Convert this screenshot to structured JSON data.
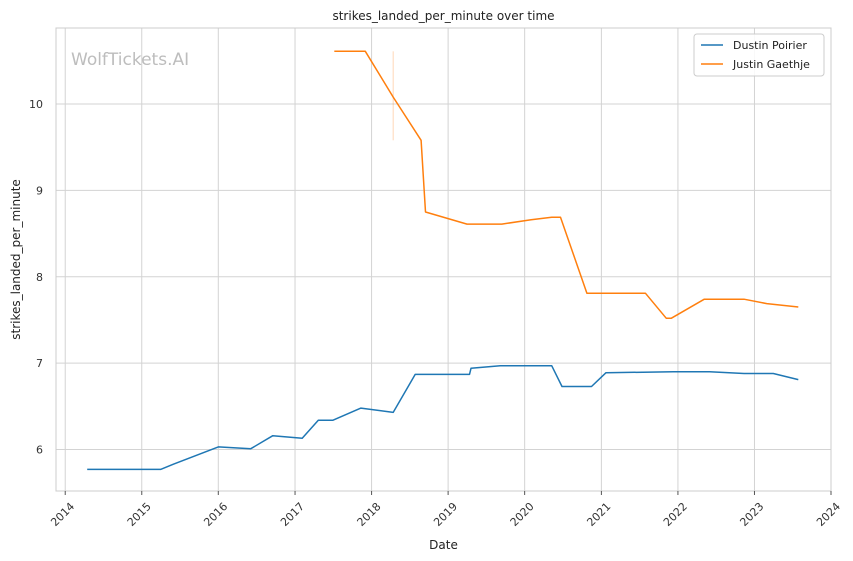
{
  "chart_data": {
    "type": "line",
    "title": "strikes_landed_per_minute over time",
    "xlabel": "Date",
    "ylabel": "strikes_landed_per_minute",
    "watermark": "WolfTickets.AI",
    "x_ticks": [
      "2014",
      "2015",
      "2016",
      "2017",
      "2018",
      "2019",
      "2020",
      "2021",
      "2022",
      "2023",
      "2024"
    ],
    "y_ticks": [
      "6",
      "7",
      "8",
      "9",
      "10"
    ],
    "xlim": [
      "2013-11-18",
      "2024-01-01"
    ],
    "ylim": [
      5.52,
      10.88
    ],
    "grid": true,
    "legend_position": "top-right",
    "series": [
      {
        "name": "Dustin Poirier",
        "color": "#1f77b4",
        "points": [
          [
            "2014-04-16",
            5.77
          ],
          [
            "2015-04-01",
            5.77
          ],
          [
            "2015-06-01",
            5.83
          ],
          [
            "2016-01-01",
            6.03
          ],
          [
            "2016-06-04",
            6.01
          ],
          [
            "2016-09-17",
            6.16
          ],
          [
            "2017-02-04",
            6.13
          ],
          [
            "2017-04-22",
            6.34
          ],
          [
            "2017-07-01",
            6.34
          ],
          [
            "2017-11-11",
            6.48
          ],
          [
            "2018-04-14",
            6.43
          ],
          [
            "2018-07-28",
            6.87
          ],
          [
            "2019-04-13",
            6.87
          ],
          [
            "2019-04-20",
            6.94
          ],
          [
            "2019-09-07",
            6.97
          ],
          [
            "2020-05-09",
            6.97
          ],
          [
            "2020-06-27",
            6.73
          ],
          [
            "2020-11-15",
            6.73
          ],
          [
            "2021-01-23",
            6.89
          ],
          [
            "2021-12-11",
            6.9
          ],
          [
            "2022-06-01",
            6.9
          ],
          [
            "2022-11-12",
            6.88
          ],
          [
            "2023-04-01",
            6.88
          ],
          [
            "2023-07-29",
            6.81
          ]
        ]
      },
      {
        "name": "Justin Gaethje",
        "color": "#ff7f0e",
        "points": [
          [
            "2017-07-07",
            10.61
          ],
          [
            "2017-12-02",
            10.61
          ],
          [
            "2018-04-14",
            10.08
          ],
          [
            "2018-08-25",
            9.58
          ],
          [
            "2018-09-15",
            8.75
          ],
          [
            "2019-04-01",
            8.61
          ],
          [
            "2019-09-14",
            8.61
          ],
          [
            "2020-02-01",
            8.66
          ],
          [
            "2020-05-09",
            8.69
          ],
          [
            "2020-06-20",
            8.69
          ],
          [
            "2020-10-24",
            7.81
          ],
          [
            "2021-07-30",
            7.81
          ],
          [
            "2021-11-06",
            7.52
          ],
          [
            "2021-12-01",
            7.52
          ],
          [
            "2022-05-07",
            7.74
          ],
          [
            "2022-11-12",
            7.74
          ],
          [
            "2023-03-01",
            7.69
          ],
          [
            "2023-07-29",
            7.65
          ]
        ]
      }
    ],
    "errorbar": {
      "series": "Justin Gaethje",
      "x": "2018-04-14",
      "low": 9.58,
      "high": 10.61
    }
  }
}
